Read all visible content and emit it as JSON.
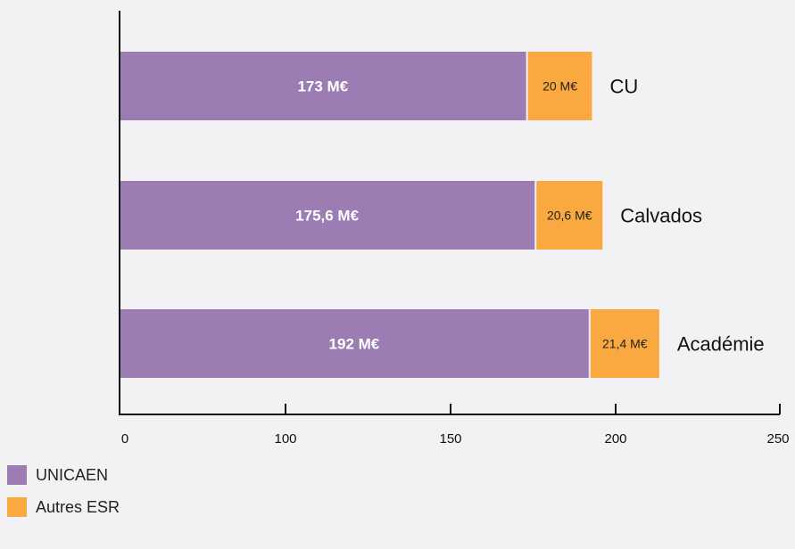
{
  "chart_data": {
    "type": "bar",
    "orientation": "horizontal",
    "stacked": true,
    "categories": [
      "CU",
      "Calvados",
      "Académie"
    ],
    "series": [
      {
        "name": "UNICAEN",
        "values": [
          173,
          175.6,
          192
        ],
        "labels": [
          "173 M€",
          "175,6 M€",
          "192 M€"
        ],
        "color": "#9b7db3"
      },
      {
        "name": "Autres ESR",
        "values": [
          20,
          20.6,
          21.4
        ],
        "labels": [
          "20 M€",
          "20,6 M€",
          "21,4 M€"
        ],
        "color": "#f9a93f"
      }
    ],
    "x_ticks": [
      "0",
      "100",
      "150",
      "200",
      "250"
    ],
    "xlim": [
      0,
      250
    ],
    "axis_break": "between 0 and 100",
    "grid": false,
    "legend_position": "bottom-left"
  }
}
